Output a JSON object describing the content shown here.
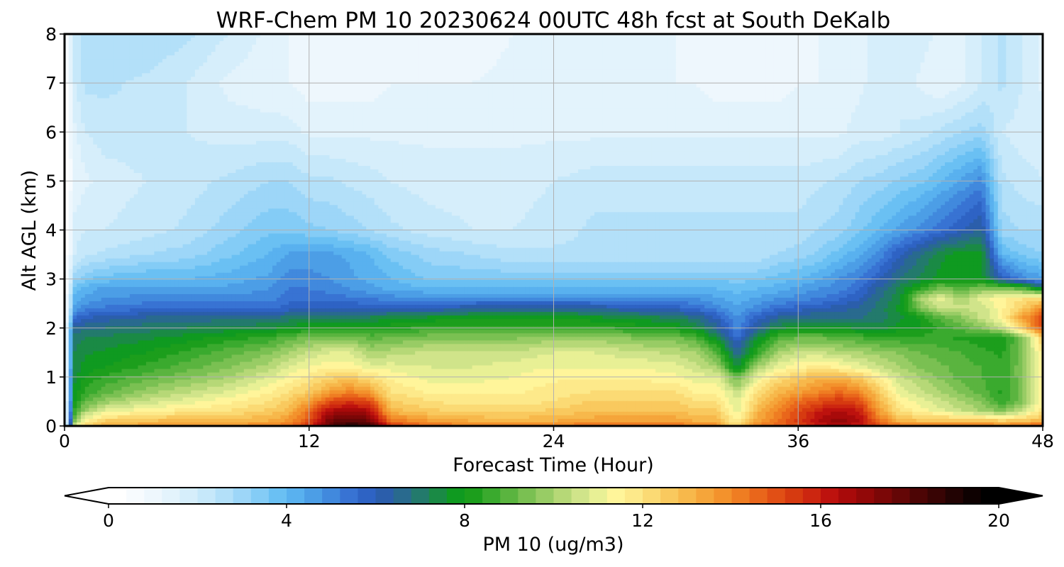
{
  "chart_data": {
    "type": "heatmap",
    "title": "WRF-Chem PM 10  20230624 00UTC 48h fcst at South DeKalb",
    "xlabel": "Forecast Time (Hour)",
    "ylabel": "Alt AGL (km)",
    "xlim": [
      0,
      48
    ],
    "ylim": [
      0,
      8
    ],
    "x_ticks": [
      "0",
      "12",
      "24",
      "36",
      "48"
    ],
    "y_ticks": [
      "0",
      "1",
      "2",
      "3",
      "4",
      "5",
      "6",
      "7",
      "8"
    ],
    "grid": true,
    "colorbar": {
      "label": "PM 10  (ug/m3)",
      "range": [
        0,
        20
      ],
      "ticks": [
        "0",
        "4",
        "8",
        "12",
        "16",
        "20"
      ],
      "extend": "both",
      "colors": [
        "#ffffff",
        "#f7fbfe",
        "#eef7fd",
        "#e3f3fc",
        "#d6eefb",
        "#c6e8fa",
        "#b3e0f9",
        "#9dd6f8",
        "#84ccf6",
        "#6ac0f3",
        "#59b1ef",
        "#4c9ee6",
        "#4189dd",
        "#3873d3",
        "#2e63c4",
        "#2b5eab",
        "#296a8e",
        "#237a6c",
        "#1a8a45",
        "#0f9a20",
        "#1c9e1c",
        "#3aaa2e",
        "#5ab43f",
        "#7ac052",
        "#98cc65",
        "#b6d877",
        "#d0e48a",
        "#e8f095",
        "#fff59a",
        "#fde98a",
        "#fbda74",
        "#f9c95e",
        "#f7b84b",
        "#f5a53a",
        "#f3922c",
        "#ef7d22",
        "#e9661b",
        "#e14f15",
        "#d63a10",
        "#cc2610",
        "#bd120e",
        "#a80a0a",
        "#920808",
        "#7b0707",
        "#640606",
        "#4d0505",
        "#380404",
        "#220303",
        "#0e0101",
        "#000000"
      ],
      "under_color": "#ffffff",
      "over_color": "#000000"
    },
    "x": [
      0,
      0.5,
      1,
      2,
      4,
      6,
      8,
      10,
      11,
      12,
      13,
      14,
      15,
      16,
      18,
      20,
      22,
      24,
      26,
      28,
      30,
      31,
      32,
      33,
      34,
      35,
      36,
      37,
      38,
      39,
      40,
      41,
      42,
      43,
      44,
      45,
      46,
      47,
      48
    ],
    "y": [
      0,
      0.1,
      0.3,
      0.5,
      0.7,
      1.0,
      1.2,
      1.5,
      1.8,
      2.0,
      2.2,
      2.4,
      2.6,
      2.8,
      3.0,
      3.5,
      4.0,
      5.0,
      6.0,
      7.0,
      8.0
    ],
    "z": [
      [
        0,
        10.5,
        12.5,
        13.2,
        13.5,
        13.8,
        13.8,
        14.0,
        14.5,
        15.5,
        18.0,
        19.0,
        18.5,
        15.5,
        14.5,
        14.2,
        14.0,
        14.2,
        14.5,
        14.5,
        14.5,
        14.2,
        14.0,
        12.0,
        14.0,
        14.5,
        15.0,
        16.0,
        16.5,
        16.0,
        15.0,
        14.5,
        14.5,
        14.5,
        14.5,
        14.5,
        14.0,
        14.5,
        15.0
      ],
      [
        0,
        9.5,
        11.5,
        12.5,
        12.8,
        13.0,
        13.0,
        13.2,
        13.8,
        15.0,
        17.5,
        18.0,
        17.5,
        14.5,
        13.5,
        13.2,
        13.0,
        13.2,
        13.5,
        13.5,
        13.5,
        13.2,
        13.0,
        11.5,
        13.5,
        14.5,
        15.5,
        16.5,
        17.0,
        16.5,
        14.5,
        13.0,
        12.8,
        12.8,
        12.8,
        12.8,
        12.5,
        12.8,
        13.0
      ],
      [
        0,
        8.5,
        10.0,
        11.0,
        11.5,
        11.8,
        12.0,
        12.5,
        13.0,
        14.5,
        16.5,
        17.0,
        16.5,
        13.0,
        12.5,
        12.3,
        12.3,
        12.5,
        12.8,
        12.8,
        12.8,
        12.5,
        12.5,
        11.0,
        13.0,
        14.0,
        15.0,
        16.0,
        16.5,
        16.0,
        13.5,
        12.0,
        11.5,
        11.0,
        10.5,
        10.0,
        9.5,
        10.5,
        12.0
      ],
      [
        0,
        8.0,
        9.0,
        9.8,
        10.5,
        11.0,
        11.5,
        12.0,
        12.5,
        13.5,
        15.0,
        15.5,
        15.0,
        12.5,
        12.0,
        11.8,
        11.8,
        12.0,
        12.5,
        12.5,
        12.5,
        12.0,
        12.0,
        10.8,
        12.5,
        13.5,
        14.5,
        15.0,
        15.5,
        15.0,
        13.0,
        11.5,
        11.0,
        10.5,
        10.0,
        9.5,
        8.5,
        9.5,
        11.5
      ],
      [
        0,
        7.8,
        8.5,
        9.0,
        9.8,
        10.3,
        10.8,
        11.5,
        12.0,
        12.5,
        13.5,
        14.0,
        13.5,
        12.0,
        11.5,
        11.5,
        11.5,
        11.8,
        12.0,
        12.0,
        12.0,
        11.5,
        11.5,
        10.5,
        12.0,
        13.0,
        13.5,
        14.0,
        14.5,
        14.0,
        12.5,
        11.0,
        10.5,
        10.0,
        9.5,
        9.0,
        8.3,
        9.5,
        11.5
      ],
      [
        0,
        7.5,
        8.0,
        8.5,
        9.0,
        9.5,
        10.0,
        10.8,
        11.3,
        11.8,
        12.3,
        12.5,
        12.0,
        11.5,
        11.0,
        11.0,
        11.2,
        11.5,
        11.5,
        11.5,
        11.3,
        11.0,
        11.0,
        9.0,
        11.0,
        12.0,
        12.5,
        13.0,
        13.0,
        12.5,
        11.5,
        10.5,
        10.0,
        9.5,
        9.0,
        8.8,
        8.5,
        9.5,
        11.5
      ],
      [
        0,
        7.3,
        7.8,
        8.0,
        8.5,
        9.0,
        9.5,
        10.2,
        10.8,
        11.2,
        11.5,
        11.5,
        11.0,
        11.0,
        10.8,
        10.8,
        11.0,
        11.2,
        11.2,
        11.2,
        11.0,
        10.5,
        10.0,
        7.5,
        10.0,
        11.0,
        11.5,
        11.8,
        11.5,
        11.0,
        10.5,
        10.0,
        9.5,
        9.3,
        9.0,
        8.8,
        8.5,
        9.5,
        11.5
      ],
      [
        0,
        7.2,
        7.5,
        7.7,
        8.0,
        8.5,
        9.0,
        9.5,
        10.0,
        10.5,
        10.8,
        10.8,
        10.0,
        10.2,
        10.5,
        10.5,
        10.5,
        10.8,
        10.8,
        10.5,
        10.3,
        10.0,
        9.0,
        6.5,
        8.5,
        10.0,
        10.5,
        10.5,
        10.2,
        10.0,
        9.8,
        9.5,
        9.2,
        9.0,
        8.8,
        8.5,
        8.3,
        9.5,
        11.8
      ],
      [
        0,
        7.0,
        7.2,
        7.3,
        7.5,
        7.8,
        8.2,
        8.5,
        9.0,
        9.3,
        9.5,
        9.5,
        9.0,
        9.2,
        9.5,
        9.5,
        9.5,
        9.8,
        9.8,
        9.5,
        9.3,
        8.8,
        7.5,
        5.5,
        7.5,
        8.8,
        9.2,
        9.2,
        9.0,
        8.8,
        8.5,
        8.5,
        8.5,
        8.5,
        8.3,
        8.2,
        8.0,
        9.5,
        12.5
      ],
      [
        0,
        6.5,
        6.7,
        6.8,
        7.0,
        7.2,
        7.3,
        7.5,
        7.8,
        8.0,
        8.2,
        8.3,
        8.2,
        8.3,
        8.5,
        8.5,
        8.5,
        8.5,
        8.5,
        8.3,
        8.0,
        7.5,
        6.5,
        5.0,
        6.5,
        7.5,
        7.8,
        7.8,
        7.8,
        7.5,
        7.5,
        7.8,
        8.0,
        8.5,
        9.0,
        9.5,
        10.5,
        12.5,
        15.0
      ],
      [
        0,
        5.5,
        6.0,
        6.2,
        6.5,
        6.5,
        6.7,
        6.8,
        7.0,
        7.2,
        7.3,
        7.3,
        7.3,
        7.5,
        7.8,
        8.0,
        8.0,
        8.0,
        7.8,
        7.5,
        7.2,
        6.8,
        6.0,
        4.8,
        5.8,
        6.5,
        6.8,
        6.8,
        6.8,
        6.8,
        7.0,
        7.5,
        8.0,
        9.0,
        9.5,
        10.5,
        11.5,
        13.5,
        15.5
      ],
      [
        0,
        4.5,
        5.0,
        5.3,
        5.5,
        5.5,
        5.5,
        5.5,
        5.8,
        6.0,
        6.0,
        6.0,
        6.0,
        6.0,
        6.0,
        6.3,
        6.5,
        6.5,
        6.3,
        6.0,
        5.8,
        5.5,
        5.0,
        4.5,
        5.0,
        5.5,
        5.8,
        6.0,
        6.2,
        6.5,
        7.0,
        7.8,
        9.5,
        10.5,
        10.5,
        10.5,
        11.5,
        12.5,
        14.0
      ],
      [
        0,
        4.2,
        4.5,
        4.8,
        5.0,
        5.0,
        5.0,
        5.0,
        5.5,
        5.5,
        5.5,
        5.3,
        5.2,
        5.0,
        5.0,
        5.0,
        5.0,
        5.0,
        5.0,
        5.0,
        5.0,
        4.8,
        4.5,
        4.2,
        4.5,
        4.8,
        5.0,
        5.2,
        5.5,
        6.0,
        6.8,
        7.5,
        10.0,
        11.0,
        10.0,
        11.0,
        11.5,
        12.0,
        12.0
      ],
      [
        0,
        3.8,
        4.2,
        4.5,
        4.5,
        4.5,
        4.5,
        4.8,
        5.2,
        5.2,
        5.0,
        4.8,
        4.5,
        4.3,
        4.0,
        4.0,
        4.0,
        4.0,
        4.0,
        4.0,
        4.0,
        4.0,
        4.0,
        3.8,
        4.0,
        4.2,
        4.5,
        4.8,
        5.0,
        5.5,
        6.5,
        7.3,
        8.5,
        9.5,
        9.0,
        9.5,
        9.5,
        9.0,
        7.5
      ],
      [
        0,
        3.0,
        3.5,
        3.8,
        4.0,
        4.0,
        4.2,
        4.5,
        5.0,
        5.0,
        4.8,
        4.5,
        4.3,
        4.0,
        3.5,
        3.5,
        3.5,
        3.5,
        3.5,
        3.5,
        3.5,
        3.5,
        3.5,
        3.5,
        3.5,
        3.8,
        4.0,
        4.3,
        4.8,
        5.2,
        6.0,
        6.8,
        7.3,
        7.8,
        7.8,
        7.8,
        6.0,
        5.0,
        4.5
      ],
      [
        0,
        2.0,
        2.3,
        2.5,
        2.8,
        3.0,
        3.5,
        4.0,
        4.5,
        4.5,
        4.5,
        4.3,
        4.0,
        3.5,
        3.0,
        2.8,
        2.5,
        2.5,
        2.5,
        2.5,
        2.5,
        2.5,
        2.5,
        2.5,
        2.5,
        2.8,
        3.0,
        3.3,
        3.8,
        4.3,
        5.0,
        6.0,
        6.8,
        7.5,
        7.8,
        7.8,
        4.0,
        3.5,
        3.2
      ],
      [
        0,
        1.8,
        2.0,
        2.0,
        2.2,
        2.5,
        3.0,
        3.5,
        3.5,
        3.3,
        3.2,
        3.0,
        2.8,
        2.5,
        2.2,
        2.0,
        2.0,
        2.2,
        2.5,
        2.5,
        2.5,
        2.5,
        2.5,
        2.5,
        2.5,
        2.5,
        2.5,
        2.8,
        3.0,
        3.5,
        4.0,
        4.5,
        5.0,
        5.5,
        6.0,
        6.5,
        3.0,
        2.8,
        2.8
      ],
      [
        0,
        1.2,
        1.5,
        1.8,
        2.0,
        2.2,
        2.5,
        2.8,
        2.8,
        2.5,
        2.5,
        2.3,
        2.2,
        2.0,
        1.8,
        1.8,
        1.8,
        2.0,
        2.2,
        2.2,
        2.2,
        2.2,
        2.2,
        2.2,
        2.2,
        2.2,
        2.2,
        2.3,
        2.5,
        2.8,
        3.0,
        3.3,
        3.5,
        4.0,
        4.5,
        5.0,
        2.5,
        2.2,
        2.0
      ],
      [
        0,
        1.5,
        2.0,
        2.2,
        2.2,
        2.0,
        1.8,
        1.8,
        1.8,
        1.5,
        1.5,
        1.5,
        1.5,
        1.5,
        1.5,
        1.5,
        1.5,
        1.5,
        1.5,
        1.5,
        1.5,
        1.5,
        1.5,
        1.5,
        1.5,
        1.5,
        1.5,
        1.5,
        1.5,
        1.8,
        1.8,
        2.0,
        2.2,
        2.5,
        2.8,
        3.0,
        2.0,
        1.8,
        1.8
      ],
      [
        0,
        2.0,
        2.5,
        2.5,
        2.3,
        2.0,
        1.5,
        1.3,
        1.2,
        1.0,
        1.0,
        1.0,
        1.0,
        1.2,
        1.2,
        1.2,
        1.3,
        1.5,
        1.3,
        1.2,
        1.2,
        1.2,
        1.0,
        1.0,
        1.0,
        1.0,
        1.2,
        1.2,
        1.2,
        1.5,
        1.8,
        2.0,
        1.5,
        1.2,
        1.5,
        2.0,
        2.5,
        2.0,
        1.5
      ],
      [
        0,
        2.0,
        2.5,
        2.8,
        2.8,
        2.5,
        2.0,
        1.5,
        1.2,
        1.0,
        0.8,
        0.8,
        1.0,
        1.0,
        1.0,
        1.0,
        1.2,
        1.2,
        1.2,
        1.2,
        1.2,
        1.0,
        1.0,
        1.0,
        1.0,
        1.0,
        1.0,
        1.2,
        1.2,
        1.5,
        1.8,
        2.0,
        1.8,
        1.5,
        1.5,
        2.0,
        2.5,
        2.0,
        1.5
      ]
    ]
  }
}
